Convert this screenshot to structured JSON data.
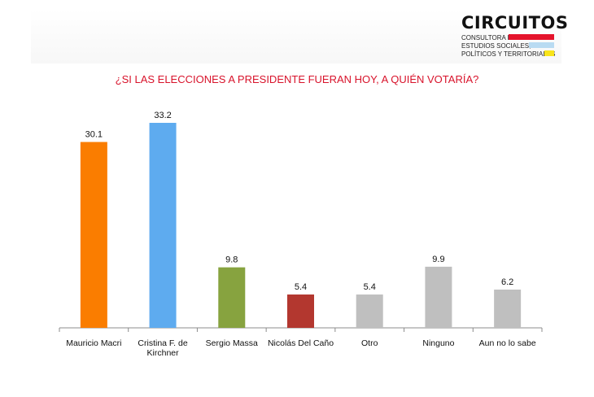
{
  "logo": {
    "name": "CIRCUITOS",
    "line1": "CONSULTORA DE",
    "line2": "ESTUDIOS SOCIALES,",
    "line3": "POLÍTICOS Y TERRITORIALES",
    "colors": [
      "#e4132b",
      "#b9dbf2",
      "#f8e41a"
    ]
  },
  "chart_data": {
    "type": "bar",
    "title": "¿SI LAS ELECCIONES A PRESIDENTE FUERAN HOY, A QUIÉN VOTARÍA?",
    "categories": [
      "Mauricio Macri",
      "Cristina F. de Kirchner",
      "Sergio Massa",
      "Nicolás Del Caño",
      "Otro",
      "Ninguno",
      "Aun no lo sabe"
    ],
    "values": [
      30.1,
      33.2,
      9.8,
      5.4,
      5.4,
      9.9,
      6.2
    ],
    "data_labels": [
      "30.1",
      "33.2",
      "9.8",
      "5.4",
      "5.4",
      "9.9",
      "6.2"
    ],
    "colors": [
      "#fa7d00",
      "#5eabef",
      "#87a33f",
      "#b3372f",
      "#bfbfbf",
      "#bfbfbf",
      "#bfbfbf"
    ],
    "ylim": [
      0,
      33.2
    ],
    "grid": false,
    "legend": "none"
  }
}
